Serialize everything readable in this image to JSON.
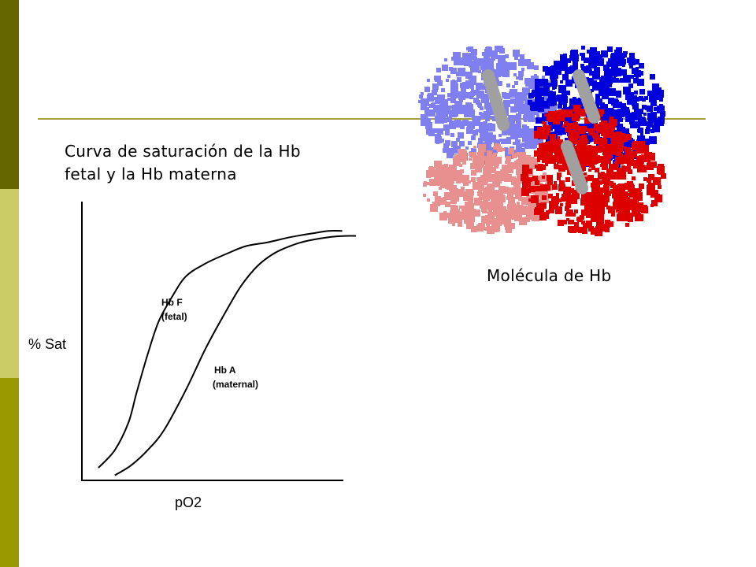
{
  "slide": {
    "caption_line1": "Curva de saturación de la Hb",
    "caption_line2": "fetal y la Hb materna",
    "molecule_caption": "Molécula de Hb"
  },
  "colors": {
    "bar_dark": "#666600",
    "bar_light": "#cccc66",
    "bar_mid": "#999900",
    "rule": "#a8a040",
    "hb_light_blue": "#7f7fef",
    "hb_blue": "#0000dd",
    "hb_pink": "#e89090",
    "hb_red": "#dd0000",
    "heme_gray": "#a0a0a0"
  },
  "chart_data": {
    "type": "line",
    "xlabel": "pO2",
    "ylabel": "% Sat",
    "xlim": [
      0,
      100
    ],
    "ylim": [
      0,
      100
    ],
    "grid": false,
    "series": [
      {
        "name": "Hb F (fetal)",
        "label_line1": "Hb F",
        "label_line2": "(fetal)",
        "x": [
          6,
          12,
          17,
          20,
          24,
          28,
          33,
          38,
          45,
          53,
          60,
          68,
          76,
          84,
          90,
          95
        ],
        "y": [
          5,
          12,
          23,
          35,
          50,
          63,
          73,
          81,
          86,
          90,
          93,
          94.5,
          96.5,
          98,
          99,
          99
        ]
      },
      {
        "name": "Hb A (maternal)",
        "label_line1": "Hb A",
        "label_line2": "(maternal)",
        "x": [
          12,
          18,
          24,
          30,
          38,
          45,
          52,
          58,
          64,
          70,
          76,
          82,
          90,
          96,
          100
        ],
        "y": [
          2,
          6,
          12,
          20,
          36,
          52,
          66,
          77,
          85,
          90,
          93,
          95,
          96.5,
          97,
          97
        ]
      }
    ]
  }
}
